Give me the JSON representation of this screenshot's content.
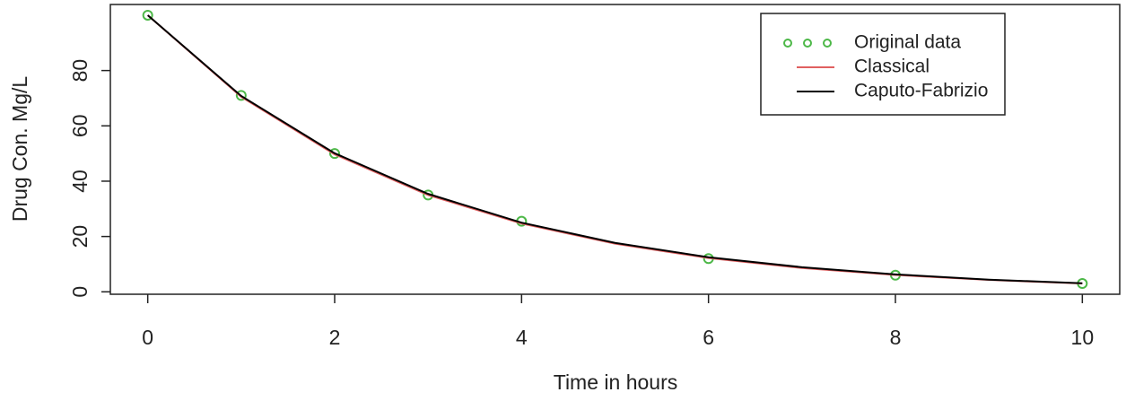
{
  "chart_data": {
    "type": "line",
    "xlabel": "Time in hours",
    "ylabel": "Drug Con. Mg/L",
    "xlim": [
      -0.4,
      10.4
    ],
    "xticks": [
      0,
      2,
      4,
      6,
      8,
      10
    ],
    "ylim": [
      -0.88,
      103.88
    ],
    "yticks": [
      0,
      20,
      40,
      60,
      80
    ],
    "legend": "topright",
    "series": [
      {
        "name": "Original data",
        "color": "#4db848",
        "mode": "markers",
        "x": [
          0,
          1,
          2,
          3,
          4,
          6,
          8,
          10
        ],
        "values": [
          100,
          71,
          50,
          35,
          25.5,
          12,
          6,
          3
        ]
      },
      {
        "name": "Classical",
        "color": "#e06060",
        "mode": "line",
        "x": [
          0,
          1,
          2,
          3,
          4,
          5,
          6,
          7,
          8,
          9,
          10
        ],
        "values": [
          100,
          70.5,
          49.7,
          35,
          24.7,
          17.4,
          12.2,
          8.6,
          6.1,
          4.3,
          3
        ]
      },
      {
        "name": "Caputo-Fabrizio",
        "color": "#000000",
        "mode": "line",
        "x": [
          0,
          1,
          2,
          3,
          4,
          5,
          6,
          7,
          8,
          9,
          10
        ],
        "values": [
          100,
          70.8,
          50.1,
          35.4,
          25,
          17.7,
          12.5,
          8.9,
          6.3,
          4.4,
          3.1
        ]
      }
    ]
  }
}
